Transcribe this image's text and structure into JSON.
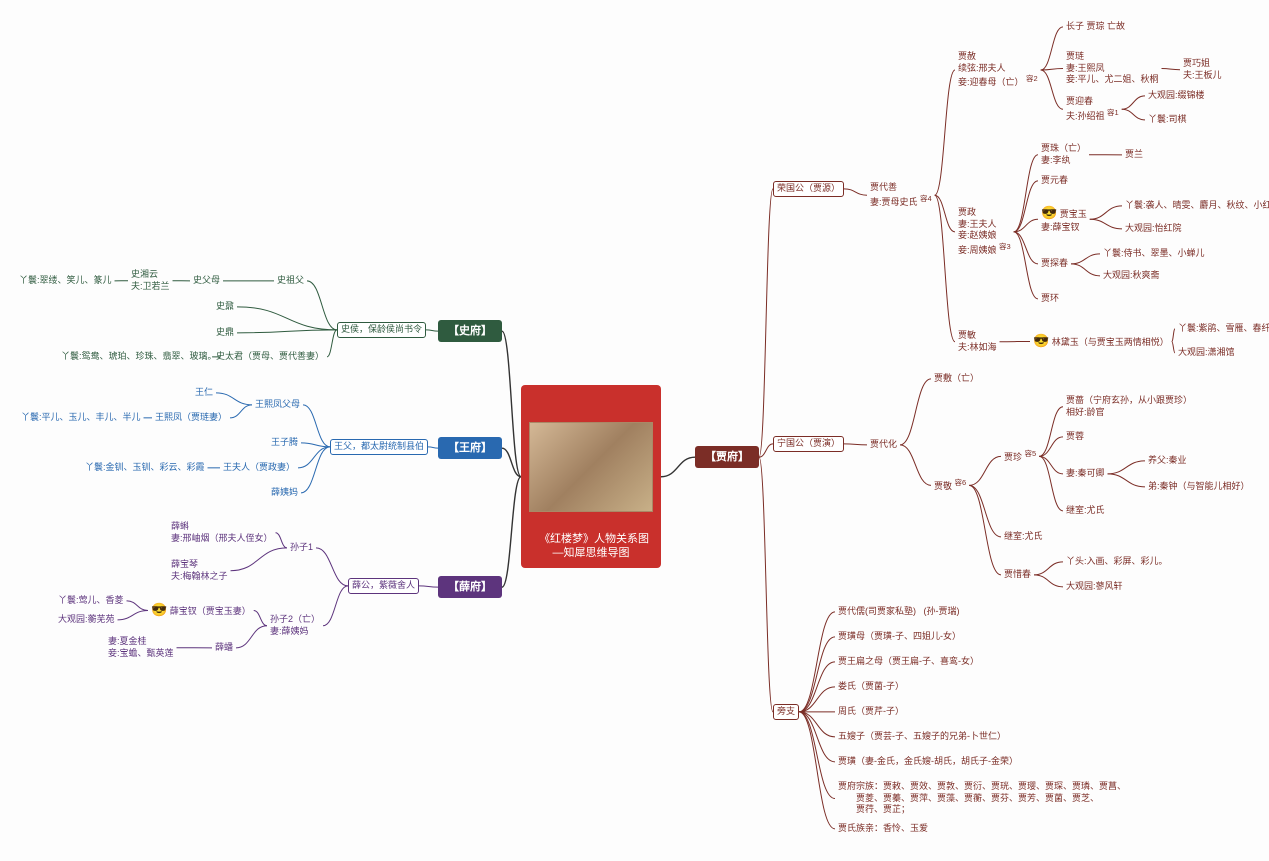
{
  "root": {
    "title": "《红楼梦》人物关系图\n—知犀思维导图"
  },
  "colors": {
    "root_bg": "#c9302c",
    "shi": "#2f5b3f",
    "wang": "#2969b0",
    "xue": "#5d347d",
    "jia": "#7b2d26",
    "line": "#666666"
  },
  "families": {
    "shi": {
      "label": "【史府】"
    },
    "wang": {
      "label": "【王府】"
    },
    "xue": {
      "label": "【薛府】"
    },
    "jia": {
      "label": "【贾府】"
    }
  },
  "shi": {
    "anc": "史侯，保龄侯尚书令",
    "b1": "史祖父",
    "b1a": "史父母",
    "b1a1": "史湘云\n夫:卫若兰",
    "b1a1_r": "丫鬟:翠缕、笑儿、篆儿",
    "b2": "史鼐",
    "b3": "史鼎",
    "b4": "史太君（贾母、贾代善妻）",
    "b4_r": "丫鬟:鸳鸯、琥珀、珍珠、翡翠、玻璃。"
  },
  "wang": {
    "anc": "王父，都太尉统制县伯",
    "b1": "王熙凤父母",
    "b1a": "王仁",
    "b1b": "王熙凤（贾琏妻）",
    "b1b_r": "丫鬟:平儿、玉儿、丰儿、半儿",
    "b2": "王子腾",
    "b3": "王夫人（贾政妻）",
    "b3_r": "丫鬟:金钏、玉钏、彩云、彩霞",
    "b4": "薛姨妈"
  },
  "xue": {
    "anc": "薛公，紫薇舍人",
    "b1": "孙子1",
    "b1a": "薛蝌\n妻:邢岫烟（邢夫人侄女）",
    "b1b": "薛宝琴\n夫:梅翰林之子",
    "b2": "孙子2（亡）\n妻:薛姨妈",
    "b2a": "薛宝钗（贾宝玉妻）",
    "b2a_emoji": "😎",
    "b2a_r1": "丫鬟:莺儿、香菱",
    "b2a_r2": "大观园:蘅芜苑",
    "b2b": "薛蟠",
    "b2b_r": "妻:夏金桂\n妾:宝蟾、甄英莲"
  },
  "jia": {
    "rong": {
      "label": "荣国公（贾源）",
      "g1": "贾代善\n妻:贾母史氏",
      "g1_sup": "容4",
      "jiashe": {
        "label": "贾赦\n续弦:邢夫人\n妾:迎春母（亡）",
        "sup": "容2",
        "c1": "长子 贾琮 亡故",
        "c2": "贾琏\n妻:王熙凤\n妾:平儿、尤二姐、秋桐",
        "c2a": "贾巧姐\n夫:王板儿",
        "c3": "贾迎春\n夫:孙绍祖",
        "c3_sup": "容1",
        "c3a": "大观园:缀锦楼",
        "c3b": "丫鬟:司棋"
      },
      "jiazheng": {
        "label": "贾政\n妻:王夫人\n妾:赵姨娘\n妾:周姨娘",
        "sup": "容3",
        "c1": "贾珠（亡）\n妻:李纨",
        "c1a": "贾兰",
        "c2": "贾元春",
        "c3": "贾宝玉\n妻:薛宝钗",
        "c3_emoji": "😎",
        "c3a": "丫鬟:袭人、晴雯、麝月、秋纹、小红",
        "c3b": "大观园:怡红院",
        "c4": "贾探春",
        "c4a": "丫鬟:侍书、翠墨、小蝉儿",
        "c4b": "大观园:秋爽斋",
        "c5": "贾环"
      },
      "jiamin": {
        "label": "贾敏\n夫:林如海",
        "c1": "林黛玉（与贾宝玉两情相悦）",
        "c1_emoji": "😎",
        "c1a": "丫鬟:紫鹃、雪雁、春纤",
        "c1b": "大观园:潇湘馆"
      }
    },
    "ning": {
      "label": "宁国公（贾演）",
      "g1": "贾代化",
      "c1": "贾敷（亡）",
      "c2": "贾敬",
      "c2_sup": "容6",
      "c2a": "贾蔷（宁府玄孙，从小跟贾珍）\n相好:龄官",
      "c2b": "贾蓉",
      "zhen": "贾珍",
      "zhen_sup": "容5",
      "zhen_a": "养父:秦业",
      "zhen_b": "妻:秦可卿",
      "zhen_c": "弟:秦钟（与智能儿相好）",
      "zhen_d": "继室:尤氏",
      "c2c": "继室:尤氏",
      "c3": "贾惜春",
      "c3a": "丫头:入画、彩屏、彩儿。",
      "c3b": "大观园:蓼风轩"
    },
    "pang": {
      "label": "旁支",
      "l1": "贾代儒(司贾家私塾)   (孙-贾瑞)",
      "l2": "贾璜母（贾璜-子、四姐儿-女）",
      "l3": "贾王扁之母（贾王扁-子、喜鸾-女）",
      "l4": "娄氏（贾菌-子）",
      "l5": "周氏（贾芹-子）",
      "l6": "五嫂子（贾芸-子、五嫂子的兄弟-卜世仁）",
      "l7": "贾璜（妻-金氏，金氏嫂-胡氏，胡氏子-金荣）",
      "l8": "贾府宗族：贾敕、贾效、贾敦、贾衍、贾珖、贾璎、贾琛、贾璘、贾菖、\n　　贾菱、贾蓁、贾萍、贾藻、贾蘅、贾芬、贾芳、贾菌、贾芝、\n　　贾荇、贾芷；",
      "l9": "贾氏族亲：香怜、玉爱"
    }
  },
  "style": {
    "font_leaf": 9,
    "font_family_box": 11,
    "stroke_width": 1
  }
}
